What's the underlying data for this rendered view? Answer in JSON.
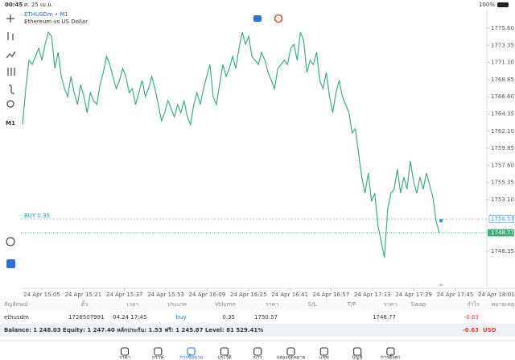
{
  "status_bar": {
    "time": "00:45",
    "date": "ศ. 25 เม.ย.",
    "battery": "100%"
  },
  "chart_data": {
    "type": "line",
    "symbol": "ETHUSDm • M1",
    "title": "Ethereum vs US Dollar",
    "timeframe_button": "M1",
    "series": [
      {
        "color": "#3fae7a",
        "values": [
          1762.93,
          1767.68,
          1771.38,
          1770.85,
          1771.9,
          1772.96,
          1771.38,
          1773.49,
          1775.07,
          1774.54,
          1770.32,
          1772.43,
          1769.26,
          1767.68,
          1766.62,
          1769.26,
          1767.15,
          1765.57,
          1768.21,
          1766.62,
          1764.51,
          1767.15,
          1766.1,
          1765.57,
          1768.21,
          1769.79,
          1771.9,
          1770.85,
          1769.26,
          1767.68,
          1768.74,
          1770.32,
          1769.26,
          1767.15,
          1767.68,
          1765.57,
          1767.15,
          1768.74,
          1766.62,
          1767.68,
          1769.26,
          1767.68,
          1765.57,
          1763.46,
          1764.51,
          1766.1,
          1765.04,
          1763.98,
          1765.57,
          1764.51,
          1766.1,
          1763.98,
          1762.93,
          1765.57,
          1767.15,
          1765.57,
          1767.68,
          1769.26,
          1770.85,
          1766.62,
          1765.57,
          1768.21,
          1770.85,
          1769.26,
          1770.32,
          1771.9,
          1770.32,
          1772.96,
          1775.07,
          1773.49,
          1774.54,
          1771.9,
          1771.38,
          1770.85,
          1772.43,
          1771.38,
          1769.79,
          1768.74,
          1767.68,
          1770.32,
          1770.85,
          1771.38,
          1770.85,
          1772.96,
          1773.49,
          1771.38,
          1775.07,
          1774.02,
          1769.79,
          1771.38,
          1770.85,
          1772.43,
          1768.74,
          1767.68,
          1769.79,
          1766.62,
          1764.51,
          1767.15,
          1768.74,
          1766.62,
          1765.57,
          1764.51,
          1761.87,
          1762.4,
          1759.23,
          1756.06,
          1753.95,
          1756.59,
          1752.9,
          1753.95,
          1749.73,
          1747.62,
          1745.5,
          1751.84,
          1753.95,
          1754.48,
          1757.12,
          1753.95,
          1756.06,
          1754.48,
          1758.18,
          1755.54,
          1753.95,
          1756.06,
          1754.48,
          1756.59,
          1755.01,
          1753.42,
          1750.26,
          1748.77
        ]
      }
    ],
    "x_labels": [
      "24 Apr 15:05",
      "24 Apr 15:21",
      "24 Apr 15:37",
      "24 Apr 15:53",
      "24 Apr 16:09",
      "24 Apr 16:25",
      "24 Apr 16:41",
      "24 Apr 16:57",
      "24 Apr 17:13",
      "24 Apr 17:29",
      "24 Apr 17:45",
      "24 Apr 18:01"
    ],
    "ylim": [
      1741.8,
      1777.71
    ],
    "yticks": [
      {
        "value": 1775.6,
        "label": "1775.60"
      },
      1773.35,
      {
        "value": 1771.1,
        "label": "1771.10"
      },
      1768.85,
      {
        "value": 1766.6,
        "label": "1766.60"
      },
      1764.35,
      {
        "value": 1762.1,
        "label": "1762.10"
      },
      1759.85,
      {
        "value": 1757.6,
        "label": "1757.60"
      },
      1755.35,
      {
        "value": 1753.1,
        "label": "1753.10"
      },
      1746.35
    ],
    "position": {
      "label": "BUY 0.35",
      "price": 1750.57,
      "color": "#2196f3"
    },
    "bid": {
      "price": 1748.77,
      "color": "#3fae7a"
    }
  },
  "table": {
    "columns": [
      "สัญลักษณ์",
      "ตั๋ว",
      "เวลา",
      "ประเภท",
      "Volume",
      "ราคา",
      "S/L",
      "T/P",
      "ราคา",
      "Swap",
      "กำไร",
      "หมายเหตุ"
    ],
    "row": {
      "symbol": "ethusdm",
      "ticket": "1728507991",
      "time": "04.24 17:45",
      "type": "buy",
      "volume": 0.35,
      "open_price": 1750.57,
      "price": 1748.77,
      "profit": -0.63
    }
  },
  "summary": {
    "text": "Balance: 1 248.03 Equity: 1 247.40 หลักประกัน: 1.53 ฟรี: 1 245.87 Level: 81 529.41%",
    "total": -0.63,
    "currency": "USD"
  },
  "tabs": [
    "ราคา",
    "กราฟ",
    "การซื้อขาย",
    "ประวัติ",
    "ข่าว",
    "กล่องจดหมาย",
    "แชท",
    "บัญชี",
    "การตั้งค่า"
  ],
  "active_tab": 2
}
